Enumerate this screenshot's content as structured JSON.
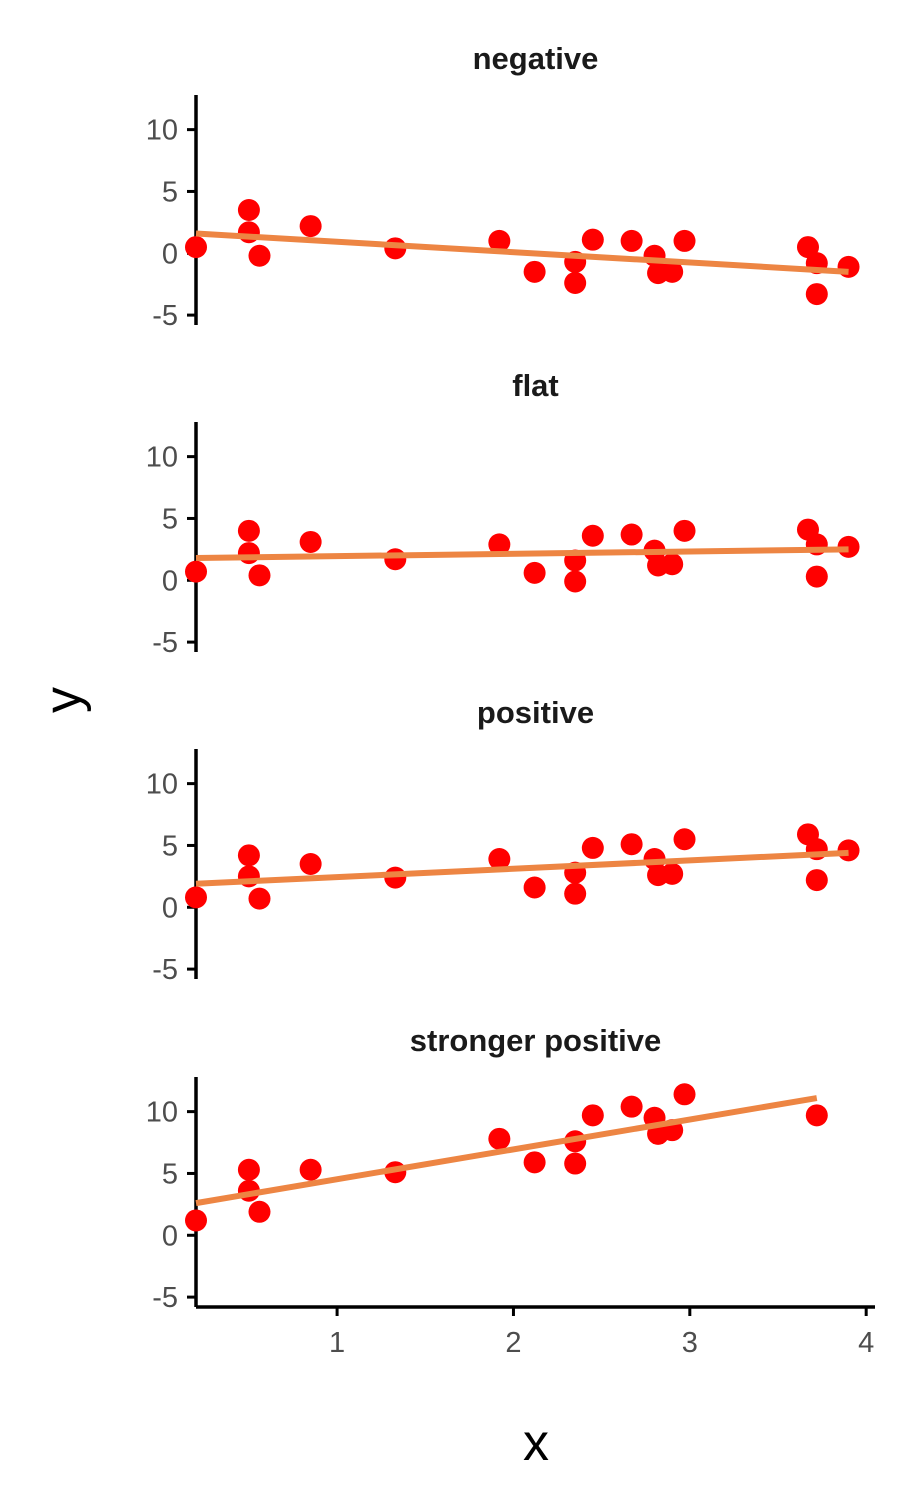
{
  "chart_data": {
    "type": "scatter",
    "xlabel": "x",
    "ylabel": "y",
    "xlim": [
      0.2,
      4.05
    ],
    "ylim": [
      -5.8,
      12.8
    ],
    "xticks": [
      1,
      2,
      3,
      4
    ],
    "yticks": [
      -5,
      0,
      5,
      10
    ],
    "grid": false,
    "point_color": "#ff0000",
    "line_color": "#ed8543",
    "panels": [
      {
        "title": "negative",
        "points": [
          [
            0.2,
            0.5
          ],
          [
            0.5,
            3.5
          ],
          [
            0.5,
            1.7
          ],
          [
            0.56,
            -0.2
          ],
          [
            0.85,
            2.2
          ],
          [
            1.33,
            0.4
          ],
          [
            1.92,
            1.0
          ],
          [
            2.12,
            -1.5
          ],
          [
            2.35,
            -0.7
          ],
          [
            2.35,
            -2.4
          ],
          [
            2.45,
            1.1
          ],
          [
            2.67,
            1.0
          ],
          [
            2.8,
            -0.2
          ],
          [
            2.82,
            -1.6
          ],
          [
            2.9,
            -1.5
          ],
          [
            2.97,
            1.0
          ],
          [
            3.67,
            0.5
          ],
          [
            3.72,
            -0.8
          ],
          [
            3.72,
            -3.3
          ],
          [
            3.9,
            -1.1
          ]
        ],
        "fit": [
          [
            0.2,
            1.6
          ],
          [
            3.9,
            -1.5
          ]
        ]
      },
      {
        "title": "flat",
        "points": [
          [
            0.2,
            0.7
          ],
          [
            0.5,
            4.0
          ],
          [
            0.5,
            2.2
          ],
          [
            0.56,
            0.4
          ],
          [
            0.85,
            3.1
          ],
          [
            1.33,
            1.7
          ],
          [
            1.92,
            2.9
          ],
          [
            2.12,
            0.6
          ],
          [
            2.35,
            1.6
          ],
          [
            2.35,
            -0.1
          ],
          [
            2.45,
            3.6
          ],
          [
            2.67,
            3.7
          ],
          [
            2.8,
            2.4
          ],
          [
            2.82,
            1.2
          ],
          [
            2.9,
            1.3
          ],
          [
            2.97,
            4.0
          ],
          [
            3.67,
            4.1
          ],
          [
            3.72,
            2.9
          ],
          [
            3.72,
            0.3
          ],
          [
            3.9,
            2.7
          ]
        ],
        "fit": [
          [
            0.2,
            1.8
          ],
          [
            3.9,
            2.5
          ]
        ]
      },
      {
        "title": "positive",
        "points": [
          [
            0.2,
            0.8
          ],
          [
            0.5,
            4.2
          ],
          [
            0.5,
            2.5
          ],
          [
            0.56,
            0.7
          ],
          [
            0.85,
            3.5
          ],
          [
            1.33,
            2.4
          ],
          [
            1.92,
            3.9
          ],
          [
            2.12,
            1.6
          ],
          [
            2.35,
            2.8
          ],
          [
            2.35,
            1.1
          ],
          [
            2.45,
            4.8
          ],
          [
            2.67,
            5.1
          ],
          [
            2.8,
            3.9
          ],
          [
            2.82,
            2.6
          ],
          [
            2.9,
            2.7
          ],
          [
            2.97,
            5.5
          ],
          [
            3.67,
            5.9
          ],
          [
            3.72,
            4.7
          ],
          [
            3.72,
            2.2
          ],
          [
            3.9,
            4.6
          ]
        ],
        "fit": [
          [
            0.2,
            1.9
          ],
          [
            3.9,
            4.4
          ]
        ]
      },
      {
        "title": "stronger positive",
        "points": [
          [
            0.2,
            1.2
          ],
          [
            0.5,
            5.3
          ],
          [
            0.5,
            3.6
          ],
          [
            0.56,
            1.9
          ],
          [
            0.85,
            5.3
          ],
          [
            1.33,
            5.1
          ],
          [
            1.92,
            7.8
          ],
          [
            2.12,
            5.9
          ],
          [
            2.35,
            7.6
          ],
          [
            2.35,
            5.8
          ],
          [
            2.45,
            9.7
          ],
          [
            2.67,
            10.4
          ],
          [
            2.8,
            9.5
          ],
          [
            2.82,
            8.2
          ],
          [
            2.9,
            8.5
          ],
          [
            2.97,
            11.4
          ],
          [
            3.72,
            9.7
          ]
        ],
        "fit": [
          [
            0.2,
            2.6
          ],
          [
            3.72,
            11.1
          ]
        ]
      }
    ]
  }
}
